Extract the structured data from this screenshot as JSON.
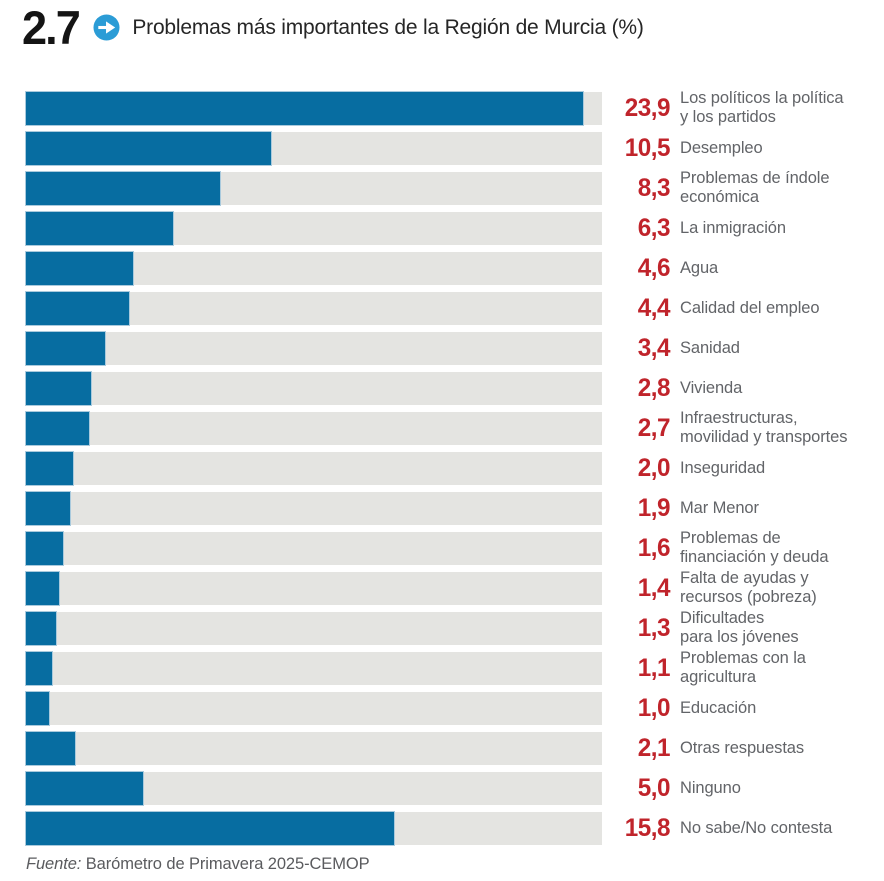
{
  "header": {
    "figure_number": "2.7",
    "title": "Problemas más importantes de la Región de Murcia (%)"
  },
  "footer": {
    "source_label": "Fuente:",
    "source_text": " Barómetro de Primavera 2025-CEMOP"
  },
  "colors": {
    "bar_fill": "#076da1",
    "bar_edge": "#a9cadd",
    "bar_track": "#e4e4e1",
    "value_red": "#c0242b",
    "label_grey": "#626468",
    "icon_blue": "#2b9cd6",
    "title_black": "#141414"
  },
  "icons": {
    "header_badge": "arrow-right-circle-icon"
  },
  "chart_data": {
    "type": "bar",
    "orientation": "horizontal",
    "title": "Problemas más importantes de la Región de Murcia (%)",
    "xlabel": "",
    "ylabel": "",
    "xlim": [
      0,
      24.7
    ],
    "grid": false,
    "legend": "none",
    "value_format": "comma-decimal",
    "rows": [
      {
        "value": 23.9,
        "value_label": "23,9",
        "label_lines": [
          "Los políticos la política",
          "y los partidos"
        ]
      },
      {
        "value": 10.5,
        "value_label": "10,5",
        "label_lines": [
          "Desempleo"
        ]
      },
      {
        "value": 8.3,
        "value_label": "8,3",
        "label_lines": [
          "Problemas de índole",
          "económica"
        ]
      },
      {
        "value": 6.3,
        "value_label": "6,3",
        "label_lines": [
          "La inmigración"
        ]
      },
      {
        "value": 4.6,
        "value_label": "4,6",
        "label_lines": [
          "Agua"
        ]
      },
      {
        "value": 4.4,
        "value_label": "4,4",
        "label_lines": [
          "Calidad del empleo"
        ]
      },
      {
        "value": 3.4,
        "value_label": "3,4",
        "label_lines": [
          "Sanidad"
        ]
      },
      {
        "value": 2.8,
        "value_label": "2,8",
        "label_lines": [
          "Vivienda"
        ]
      },
      {
        "value": 2.7,
        "value_label": "2,7",
        "label_lines": [
          "Infraestructuras,",
          "movilidad y transportes"
        ]
      },
      {
        "value": 2.0,
        "value_label": "2,0",
        "label_lines": [
          "Inseguridad"
        ]
      },
      {
        "value": 1.9,
        "value_label": "1,9",
        "label_lines": [
          "Mar Menor"
        ]
      },
      {
        "value": 1.6,
        "value_label": "1,6",
        "label_lines": [
          "Problemas de",
          "financiación y deuda"
        ]
      },
      {
        "value": 1.4,
        "value_label": "1,4",
        "label_lines": [
          "Falta de ayudas y",
          "recursos (pobreza)"
        ]
      },
      {
        "value": 1.3,
        "value_label": "1,3",
        "label_lines": [
          "Dificultades",
          "para los jóvenes"
        ]
      },
      {
        "value": 1.1,
        "value_label": "1,1",
        "label_lines": [
          "Problemas con la",
          "agricultura"
        ]
      },
      {
        "value": 1.0,
        "value_label": "1,0",
        "label_lines": [
          "Educación"
        ]
      },
      {
        "value": 2.1,
        "value_label": "2,1",
        "label_lines": [
          "Otras respuestas"
        ]
      },
      {
        "value": 5.0,
        "value_label": "5,0",
        "label_lines": [
          "Ninguno"
        ]
      },
      {
        "value": 15.8,
        "value_label": "15,8",
        "label_lines": [
          "No sabe/No contesta"
        ]
      }
    ]
  }
}
